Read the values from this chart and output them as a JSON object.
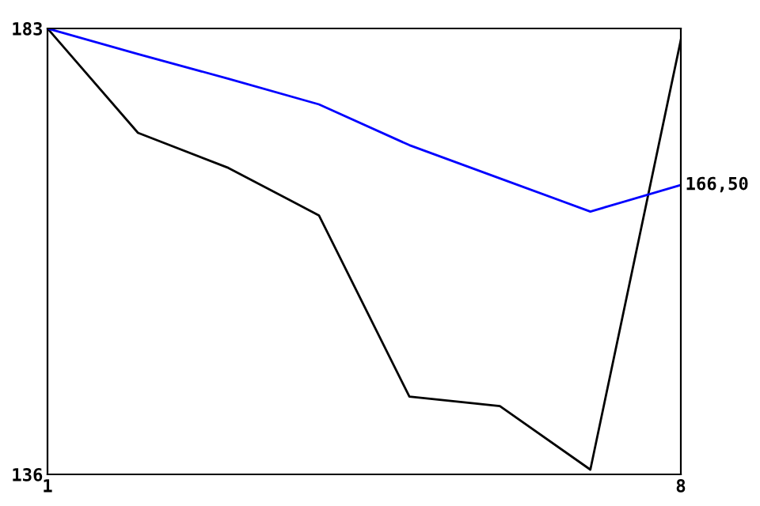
{
  "chart_data": {
    "type": "line",
    "x": [
      1,
      2,
      3,
      4,
      5,
      6,
      7,
      8
    ],
    "series": [
      {
        "color": "#000000",
        "values": [
          183,
          172,
          168.3,
          163.3,
          144.2,
          143.2,
          136.5,
          181.8
        ]
      },
      {
        "color": "#0000ff",
        "values": [
          183,
          180.3,
          177.7,
          175,
          170.7,
          167.2,
          163.7,
          166.5
        ]
      }
    ],
    "xlim": [
      1,
      8
    ],
    "ylim": [
      136,
      183
    ],
    "xticks": [
      1,
      8
    ],
    "yticks": [
      136,
      183
    ],
    "annotations": [
      {
        "text": "166,50",
        "x": 8,
        "y": 166.5
      }
    ],
    "grid": false,
    "legend": false,
    "marker": "none",
    "line_style": "solid"
  }
}
